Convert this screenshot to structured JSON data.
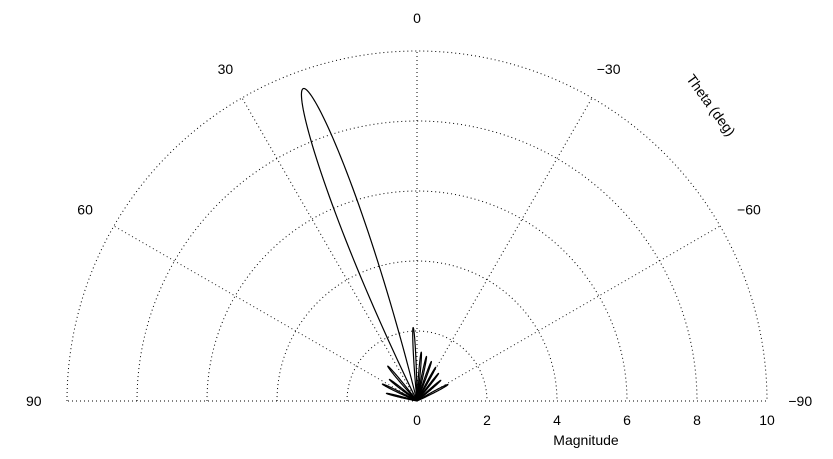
{
  "chart_data": {
    "type": "line",
    "polar": true,
    "title": "",
    "xlabel": "Magnitude",
    "theta_label": "Theta (deg)",
    "theta_range": [
      -90,
      90
    ],
    "theta_ticks": [
      "90",
      "60",
      "30",
      "0",
      "−30",
      "−60",
      "−90"
    ],
    "theta_tick_values": [
      90,
      60,
      30,
      0,
      -30,
      -60,
      -90
    ],
    "r_range": [
      0,
      10
    ],
    "r_ticks": [
      "0",
      "2",
      "4",
      "6",
      "8",
      "10"
    ],
    "r_tick_values": [
      0,
      2,
      4,
      6,
      8,
      10
    ],
    "grid": true,
    "series": [
      {
        "lobes": [
          {
            "theta": 20,
            "magnitude": 9.5,
            "halfwidth": 6
          },
          {
            "theta": 40,
            "magnitude": 1.3,
            "halfwidth": 3
          },
          {
            "theta": 52,
            "magnitude": 1.0,
            "halfwidth": 3
          },
          {
            "theta": 64,
            "magnitude": 1.1,
            "halfwidth": 3
          },
          {
            "theta": 76,
            "magnitude": 0.9,
            "halfwidth": 3
          },
          {
            "theta": 3,
            "magnitude": 2.1,
            "halfwidth": 2.5
          },
          {
            "theta": -5,
            "magnitude": 1.4,
            "halfwidth": 2.5
          },
          {
            "theta": -12,
            "magnitude": 1.3,
            "halfwidth": 2.5
          },
          {
            "theta": -20,
            "magnitude": 1.2,
            "halfwidth": 2.5
          },
          {
            "theta": -29,
            "magnitude": 1.1,
            "halfwidth": 2.5
          },
          {
            "theta": -38,
            "magnitude": 1.0,
            "halfwidth": 2.5
          },
          {
            "theta": -49,
            "magnitude": 0.9,
            "halfwidth": 3
          },
          {
            "theta": -62,
            "magnitude": 1.0,
            "halfwidth": 3.5
          }
        ]
      }
    ]
  }
}
